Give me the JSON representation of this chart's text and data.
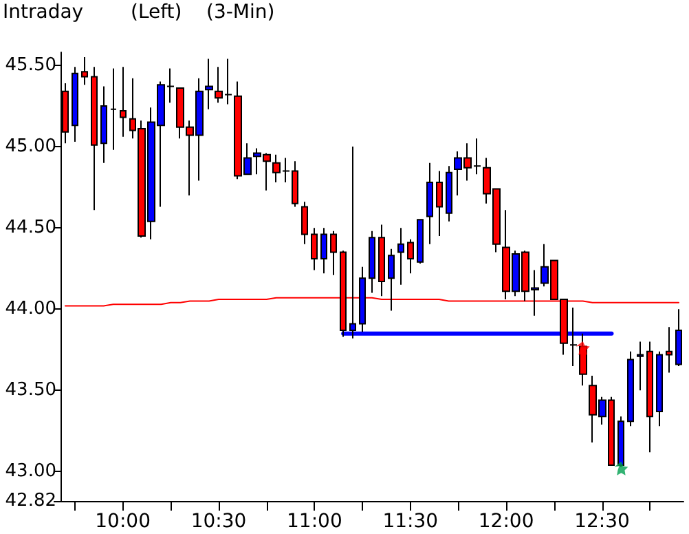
{
  "chart_data": {
    "type": "candlestick",
    "title": "Intraday",
    "annotations": [
      "(Left)",
      "(3-Min)"
    ],
    "categories": [
      null,
      null,
      null,
      null,
      null,
      null,
      "10:00",
      null,
      null,
      null,
      null,
      null,
      null,
      null,
      null,
      null,
      "10:30",
      null,
      null,
      null,
      null,
      null,
      null,
      null,
      null,
      null,
      "11:00",
      null,
      null,
      null,
      null,
      null,
      null,
      null,
      null,
      null,
      "11:30",
      null,
      null,
      null,
      null,
      null,
      null,
      null,
      null,
      null,
      "12:00",
      null,
      null,
      null,
      null,
      null,
      null,
      null,
      null,
      null,
      "12:30",
      null,
      null,
      null,
      null,
      null,
      null,
      null,
      null
    ],
    "ohlc": [
      [
        45.34,
        45.39,
        45.02,
        45.09
      ],
      [
        45.13,
        45.49,
        45.03,
        45.45
      ],
      [
        45.46,
        45.55,
        45.38,
        45.43
      ],
      [
        45.43,
        45.49,
        44.61,
        45.01
      ],
      [
        45.02,
        45.37,
        44.9,
        45.25
      ],
      [
        45.23,
        45.48,
        44.98,
        45.23
      ],
      [
        45.22,
        45.49,
        45.06,
        45.18
      ],
      [
        45.17,
        45.42,
        45.05,
        45.1
      ],
      [
        45.11,
        45.16,
        44.44,
        44.45
      ],
      [
        44.54,
        45.24,
        44.43,
        45.15
      ],
      [
        45.13,
        45.4,
        44.63,
        45.38
      ],
      [
        45.37,
        45.48,
        45.27,
        45.37
      ],
      [
        45.36,
        45.36,
        45.05,
        45.12
      ],
      [
        45.12,
        45.16,
        44.7,
        45.07
      ],
      [
        45.07,
        45.42,
        44.79,
        45.34
      ],
      [
        45.35,
        45.54,
        45.23,
        45.37
      ],
      [
        45.34,
        45.49,
        45.27,
        45.3
      ],
      [
        45.32,
        45.54,
        45.26,
        45.32
      ],
      [
        45.31,
        45.4,
        44.8,
        44.82
      ],
      [
        44.83,
        45.02,
        44.83,
        44.93
      ],
      [
        44.94,
        44.99,
        44.83,
        44.96
      ],
      [
        44.95,
        44.96,
        44.73,
        44.91
      ],
      [
        44.9,
        44.95,
        44.78,
        44.84
      ],
      [
        44.85,
        44.93,
        44.78,
        44.85
      ],
      [
        44.85,
        44.91,
        44.63,
        44.65
      ],
      [
        44.63,
        44.66,
        44.4,
        44.46
      ],
      [
        44.46,
        44.5,
        44.24,
        44.31
      ],
      [
        44.31,
        44.5,
        44.22,
        44.46
      ],
      [
        44.46,
        44.48,
        44.21,
        44.35
      ],
      [
        44.35,
        44.36,
        43.83,
        43.87
      ],
      [
        43.87,
        45.0,
        43.82,
        43.91
      ],
      [
        43.91,
        44.26,
        43.86,
        44.19
      ],
      [
        44.19,
        44.48,
        44.1,
        44.44
      ],
      [
        44.44,
        44.52,
        44.08,
        44.17
      ],
      [
        44.19,
        44.37,
        43.99,
        44.33
      ],
      [
        44.35,
        44.5,
        44.15,
        44.4
      ],
      [
        44.41,
        44.43,
        44.22,
        44.31
      ],
      [
        44.29,
        44.55,
        44.28,
        44.55
      ],
      [
        44.57,
        44.9,
        44.4,
        44.78
      ],
      [
        44.78,
        44.85,
        44.45,
        44.63
      ],
      [
        44.59,
        44.88,
        44.54,
        44.84
      ],
      [
        44.86,
        44.97,
        44.7,
        44.93
      ],
      [
        44.93,
        45.02,
        44.79,
        44.87
      ],
      [
        44.88,
        45.05,
        44.83,
        44.88
      ],
      [
        44.87,
        44.93,
        44.65,
        44.71
      ],
      [
        44.74,
        44.74,
        44.35,
        44.4
      ],
      [
        44.38,
        44.61,
        44.06,
        44.11
      ],
      [
        44.11,
        44.36,
        44.08,
        44.34
      ],
      [
        44.35,
        44.36,
        44.05,
        44.11
      ],
      [
        44.12,
        44.24,
        43.96,
        44.13
      ],
      [
        44.16,
        44.4,
        44.14,
        44.26
      ],
      [
        44.3,
        44.3,
        44.06,
        44.06
      ],
      [
        44.06,
        44.06,
        43.72,
        43.79
      ],
      [
        43.78,
        44.01,
        43.65,
        43.78
      ],
      [
        43.77,
        43.85,
        43.53,
        43.6
      ],
      [
        43.53,
        43.59,
        43.18,
        43.35
      ],
      [
        43.34,
        43.46,
        43.29,
        43.44
      ],
      [
        43.44,
        43.46,
        43.04,
        43.04
      ],
      [
        43.04,
        43.34,
        43.03,
        43.31
      ],
      [
        43.31,
        43.74,
        43.28,
        43.69
      ],
      [
        43.71,
        43.8,
        43.5,
        43.72
      ],
      [
        43.74,
        43.8,
        43.12,
        43.34
      ],
      [
        43.37,
        43.74,
        43.28,
        43.72
      ],
      [
        43.74,
        43.89,
        43.61,
        43.72
      ],
      [
        43.66,
        44.0,
        43.65,
        43.87
      ]
    ],
    "colors": [
      "#ff0000",
      "#0000ff",
      "#ff0000",
      "#ff0000",
      "#0000ff",
      "#000000",
      "#ff0000",
      "#ff0000",
      "#ff0000",
      "#0000ff",
      "#0000ff",
      "#000000",
      "#ff0000",
      "#ff0000",
      "#0000ff",
      "#0000ff",
      "#ff0000",
      "#000000",
      "#ff0000",
      "#0000ff",
      "#0000ff",
      "#ff0000",
      "#ff0000",
      "#000000",
      "#ff0000",
      "#ff0000",
      "#ff0000",
      "#0000ff",
      "#ff0000",
      "#ff0000",
      "#0000ff",
      "#0000ff",
      "#0000ff",
      "#ff0000",
      "#0000ff",
      "#0000ff",
      "#ff0000",
      "#0000ff",
      "#0000ff",
      "#ff0000",
      "#0000ff",
      "#0000ff",
      "#ff0000",
      "#000000",
      "#ff0000",
      "#ff0000",
      "#ff0000",
      "#0000ff",
      "#ff0000",
      "#0000ff",
      "#0000ff",
      "#ff0000",
      "#ff0000",
      "#000000",
      "#ff0000",
      "#ff0000",
      "#0000ff",
      "#ff0000",
      "#0000ff",
      "#0000ff",
      "#0000ff",
      "#ff0000",
      "#0000ff",
      "#ff0000",
      "#0000ff"
    ],
    "series": [
      {
        "type": "line",
        "color": "#ff0000",
        "marker": "none",
        "values": [
          44.02,
          44.02,
          44.02,
          44.02,
          44.02,
          44.03,
          44.03,
          44.03,
          44.03,
          44.03,
          44.03,
          44.04,
          44.04,
          44.05,
          44.05,
          44.05,
          44.06,
          44.06,
          44.06,
          44.06,
          44.06,
          44.06,
          44.07,
          44.07,
          44.07,
          44.07,
          44.07,
          44.07,
          44.07,
          44.07,
          44.07,
          44.07,
          44.07,
          44.06,
          44.06,
          44.06,
          44.06,
          44.06,
          44.06,
          44.06,
          44.05,
          44.05,
          44.05,
          44.05,
          44.05,
          44.05,
          44.05,
          44.05,
          44.05,
          44.05,
          44.05,
          44.05,
          44.05,
          44.05,
          44.05,
          44.04,
          44.04,
          44.04,
          44.04,
          44.04,
          44.04,
          44.04,
          44.04,
          44.04,
          44.04
        ]
      },
      {
        "type": "line",
        "color": "#0000ff",
        "marker": "none",
        "values": [
          null,
          null,
          null,
          null,
          null,
          null,
          null,
          null,
          null,
          null,
          null,
          null,
          null,
          null,
          null,
          null,
          null,
          null,
          null,
          null,
          null,
          null,
          null,
          null,
          null,
          null,
          null,
          null,
          null,
          43.85,
          43.85,
          43.85,
          43.85,
          43.85,
          43.85,
          43.85,
          43.85,
          43.85,
          43.85,
          43.85,
          43.85,
          43.85,
          43.85,
          43.85,
          43.85,
          43.85,
          43.85,
          43.85,
          43.85,
          43.85,
          43.85,
          43.85,
          43.85,
          43.85,
          43.85,
          43.85,
          43.85,
          43.85,
          null,
          null,
          null,
          null,
          null,
          null,
          null
        ]
      },
      {
        "type": "scatter",
        "color": "#ff0000",
        "marker": "star",
        "values": [
          null,
          null,
          null,
          null,
          null,
          null,
          null,
          null,
          null,
          null,
          null,
          null,
          null,
          null,
          null,
          null,
          null,
          null,
          null,
          null,
          null,
          null,
          null,
          null,
          null,
          null,
          null,
          null,
          null,
          null,
          null,
          null,
          null,
          null,
          null,
          null,
          null,
          null,
          null,
          null,
          null,
          null,
          null,
          null,
          null,
          null,
          null,
          null,
          null,
          null,
          null,
          null,
          null,
          null,
          43.76,
          null,
          null,
          null,
          null,
          null,
          null,
          null,
          null,
          null,
          null
        ]
      },
      {
        "type": "scatter",
        "color": "#00a050",
        "marker": "star",
        "values": [
          null,
          null,
          null,
          null,
          null,
          null,
          null,
          null,
          null,
          null,
          null,
          null,
          null,
          null,
          null,
          null,
          null,
          null,
          null,
          null,
          null,
          null,
          null,
          null,
          null,
          null,
          null,
          null,
          null,
          null,
          null,
          null,
          null,
          null,
          null,
          null,
          null,
          null,
          null,
          null,
          null,
          null,
          null,
          null,
          null,
          null,
          null,
          null,
          null,
          null,
          null,
          null,
          null,
          null,
          null,
          null,
          null,
          null,
          43.02,
          null,
          null,
          null,
          null,
          null,
          null
        ]
      }
    ],
    "ylim": [
      42.82,
      45.58
    ],
    "yticks": [
      {
        "value": 42.82,
        "label": "42.82"
      },
      {
        "value": 43,
        "label": "43.00"
      },
      {
        "value": 43.5,
        "label": "43.50"
      },
      {
        "value": 44,
        "label": "44.00"
      },
      {
        "value": 44.5,
        "label": "44.50"
      },
      {
        "value": 45,
        "label": "45.00"
      },
      {
        "value": 45.5,
        "label": "45.50"
      }
    ],
    "grid": false
  }
}
